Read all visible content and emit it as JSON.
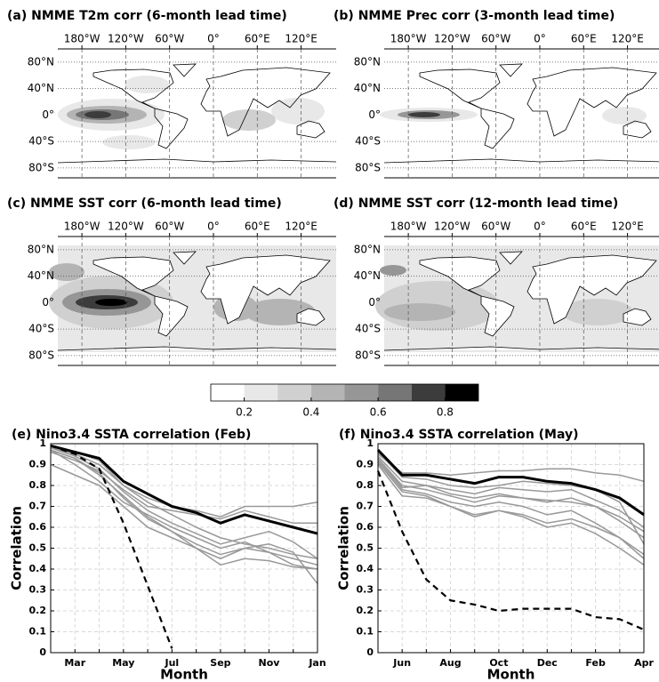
{
  "chart_data": [
    {
      "type": "map",
      "title": "(a) NMME T2m corr (6-month lead time)",
      "xlim": [
        -213,
        168
      ],
      "ylim": [
        -95,
        100
      ],
      "grid": true,
      "xticks": [
        {
          "value": -180,
          "label": "180°W"
        },
        {
          "value": -120,
          "label": "120°W"
        },
        {
          "value": -60,
          "label": "60°W"
        },
        {
          "value": 0,
          "label": "0°"
        },
        {
          "value": 60,
          "label": "60°E"
        },
        {
          "value": 120,
          "label": "120°E"
        }
      ],
      "yticks": [
        {
          "value": 80,
          "label": "80°N"
        },
        {
          "value": 40,
          "label": "40°N"
        },
        {
          "value": 0,
          "label": "0°"
        },
        {
          "value": -40,
          "label": "40°S"
        },
        {
          "value": -80,
          "label": "80°S"
        }
      ]
    },
    {
      "type": "map",
      "title": "(b) NMME Prec corr (3-month lead time)",
      "xlim": [
        -213,
        168
      ],
      "ylim": [
        -95,
        100
      ],
      "grid": true,
      "xticks": [
        {
          "value": -180,
          "label": "180°W"
        },
        {
          "value": -120,
          "label": "120°W"
        },
        {
          "value": -60,
          "label": "60°W"
        },
        {
          "value": 0,
          "label": "0°"
        },
        {
          "value": 60,
          "label": "60°E"
        },
        {
          "value": 120,
          "label": "120°E"
        }
      ],
      "yticks": [
        {
          "value": 80,
          "label": "80°N"
        },
        {
          "value": 40,
          "label": "40°N"
        },
        {
          "value": 0,
          "label": "0°"
        },
        {
          "value": -40,
          "label": "40°S"
        },
        {
          "value": -80,
          "label": "80°S"
        }
      ]
    },
    {
      "type": "map",
      "title": "(c) NMME SST corr (6-month lead time)",
      "xlim": [
        -213,
        168
      ],
      "ylim": [
        -95,
        100
      ],
      "grid": true,
      "xticks": [
        {
          "value": -180,
          "label": "180°W"
        },
        {
          "value": -120,
          "label": "120°W"
        },
        {
          "value": -60,
          "label": "60°W"
        },
        {
          "value": 0,
          "label": "0°"
        },
        {
          "value": 60,
          "label": "60°E"
        },
        {
          "value": 120,
          "label": "120°E"
        }
      ],
      "yticks": [
        {
          "value": 80,
          "label": "80°N"
        },
        {
          "value": 40,
          "label": "40°N"
        },
        {
          "value": 0,
          "label": "0°"
        },
        {
          "value": -40,
          "label": "40°S"
        },
        {
          "value": -80,
          "label": "80°S"
        }
      ]
    },
    {
      "type": "map",
      "title": "(d) NMME SST corr (12-month lead time)",
      "xlim": [
        -213,
        168
      ],
      "ylim": [
        -95,
        100
      ],
      "grid": true,
      "xticks": [
        {
          "value": -180,
          "label": "180°W"
        },
        {
          "value": -120,
          "label": "120°W"
        },
        {
          "value": -60,
          "label": "60°W"
        },
        {
          "value": 0,
          "label": "0°"
        },
        {
          "value": 60,
          "label": "60°E"
        },
        {
          "value": 120,
          "label": "120°E"
        }
      ],
      "yticks": [
        {
          "value": 80,
          "label": "80°N"
        },
        {
          "value": 40,
          "label": "40°N"
        },
        {
          "value": 0,
          "label": "0°"
        },
        {
          "value": -40,
          "label": "40°S"
        },
        {
          "value": -80,
          "label": "80°S"
        }
      ]
    },
    {
      "type": "colorbar",
      "clim": [
        0.1,
        0.9
      ],
      "colors": [
        "#ffffff",
        "#e8e8e8",
        "#d0d0d0",
        "#b4b4b4",
        "#969696",
        "#767676",
        "#3c3c3c",
        "#000000"
      ],
      "ticks": [
        0.2,
        0.4,
        0.6,
        0.8
      ]
    },
    {
      "type": "line",
      "title": "(e) Nino3.4 SSTA correlation (Feb)",
      "xlabel": "Month",
      "ylabel": "Correlation",
      "categories": [
        null,
        "Mar",
        null,
        "May",
        null,
        "Jul",
        null,
        "Sep",
        null,
        "Nov",
        null,
        "Jan"
      ],
      "ylim": [
        0,
        1
      ],
      "yticks": [
        0,
        0.1,
        0.2,
        0.3,
        0.4,
        0.5,
        0.6,
        0.7,
        0.8,
        0.9,
        1
      ],
      "grid": true,
      "series": [
        {
          "color": "#999999",
          "values": [
            0.98,
            0.95,
            0.9,
            0.8,
            0.72,
            0.66,
            0.6,
            0.55,
            0.52,
            0.5,
            0.47,
            0.45
          ]
        },
        {
          "color": "#999999",
          "values": [
            0.97,
            0.93,
            0.85,
            0.75,
            0.65,
            0.58,
            0.52,
            0.47,
            0.5,
            0.48,
            0.42,
            0.4
          ]
        },
        {
          "color": "#999999",
          "values": [
            0.96,
            0.92,
            0.87,
            0.78,
            0.7,
            0.68,
            0.66,
            0.64,
            0.68,
            0.65,
            0.62,
            0.62
          ]
        },
        {
          "color": "#999999",
          "values": [
            0.9,
            0.85,
            0.8,
            0.7,
            0.6,
            0.55,
            0.5,
            0.45,
            0.5,
            0.52,
            0.48,
            0.33
          ]
        },
        {
          "color": "#999999",
          "values": [
            0.98,
            0.94,
            0.88,
            0.77,
            0.68,
            0.62,
            0.57,
            0.52,
            0.55,
            0.58,
            0.53,
            0.45
          ]
        },
        {
          "color": "#999999",
          "values": [
            0.97,
            0.9,
            0.82,
            0.72,
            0.66,
            0.6,
            0.55,
            0.5,
            0.53,
            0.48,
            0.45,
            0.42
          ]
        },
        {
          "color": "#999999",
          "values": [
            0.99,
            0.96,
            0.92,
            0.8,
            0.74,
            0.7,
            0.68,
            0.65,
            0.7,
            0.7,
            0.7,
            0.72
          ]
        },
        {
          "color": "#999999",
          "values": [
            0.97,
            0.93,
            0.86,
            0.74,
            0.64,
            0.58,
            0.5,
            0.42,
            0.45,
            0.44,
            0.41,
            0.4
          ]
        },
        {
          "color": "#000000",
          "width": 3,
          "values": [
            0.99,
            0.96,
            0.93,
            0.82,
            0.76,
            0.7,
            0.67,
            0.62,
            0.66,
            0.63,
            0.6,
            0.57
          ]
        },
        {
          "color": "#000000",
          "dashed": true,
          "values": [
            0.99,
            0.95,
            0.88,
            0.62,
            0.32,
            0.02,
            null,
            null,
            null,
            null,
            null,
            null
          ]
        }
      ]
    },
    {
      "type": "line",
      "title": "(f) Nino3.4 SSTA correlation (May)",
      "xlabel": "Month",
      "ylabel": "Correlation",
      "categories": [
        null,
        "Jun",
        null,
        "Aug",
        null,
        "Oct",
        null,
        "Dec",
        null,
        "Feb",
        null,
        "Apr"
      ],
      "ylim": [
        0,
        1
      ],
      "yticks": [
        0,
        0.1,
        0.2,
        0.3,
        0.4,
        0.5,
        0.6,
        0.7,
        0.8,
        0.9,
        1
      ],
      "grid": true,
      "series": [
        {
          "color": "#999999",
          "values": [
            0.95,
            0.86,
            0.86,
            0.85,
            0.86,
            0.87,
            0.87,
            0.88,
            0.88,
            0.86,
            0.85,
            0.82
          ]
        },
        {
          "color": "#999999",
          "values": [
            0.93,
            0.8,
            0.78,
            0.75,
            0.72,
            0.75,
            0.74,
            0.73,
            0.72,
            0.7,
            0.65,
            0.58
          ]
        },
        {
          "color": "#999999",
          "values": [
            0.9,
            0.75,
            0.74,
            0.7,
            0.66,
            0.68,
            0.66,
            0.62,
            0.64,
            0.6,
            0.55,
            0.47
          ]
        },
        {
          "color": "#999999",
          "values": [
            0.94,
            0.82,
            0.8,
            0.78,
            0.76,
            0.79,
            0.78,
            0.77,
            0.78,
            0.73,
            0.68,
            0.6
          ]
        },
        {
          "color": "#999999",
          "values": [
            0.92,
            0.78,
            0.76,
            0.72,
            0.7,
            0.72,
            0.7,
            0.66,
            0.68,
            0.62,
            0.55,
            0.45
          ]
        },
        {
          "color": "#999999",
          "values": [
            0.96,
            0.84,
            0.83,
            0.8,
            0.79,
            0.8,
            0.82,
            0.81,
            0.8,
            0.78,
            0.72,
            0.52
          ]
        },
        {
          "color": "#999999",
          "values": [
            0.91,
            0.77,
            0.75,
            0.7,
            0.65,
            0.68,
            0.65,
            0.6,
            0.62,
            0.57,
            0.5,
            0.42
          ]
        },
        {
          "color": "#999999",
          "values": [
            0.93,
            0.79,
            0.8,
            0.76,
            0.74,
            0.76,
            0.74,
            0.72,
            0.74,
            0.7,
            0.63,
            0.55
          ]
        },
        {
          "color": "#000000",
          "width": 3,
          "values": [
            0.97,
            0.85,
            0.85,
            0.83,
            0.81,
            0.84,
            0.84,
            0.82,
            0.81,
            0.78,
            0.74,
            0.66
          ]
        },
        {
          "color": "#000000",
          "dashed": true,
          "values": [
            0.87,
            0.58,
            0.35,
            0.25,
            0.23,
            0.2,
            0.21,
            0.21,
            0.21,
            0.17,
            0.16,
            0.11
          ]
        }
      ]
    }
  ]
}
